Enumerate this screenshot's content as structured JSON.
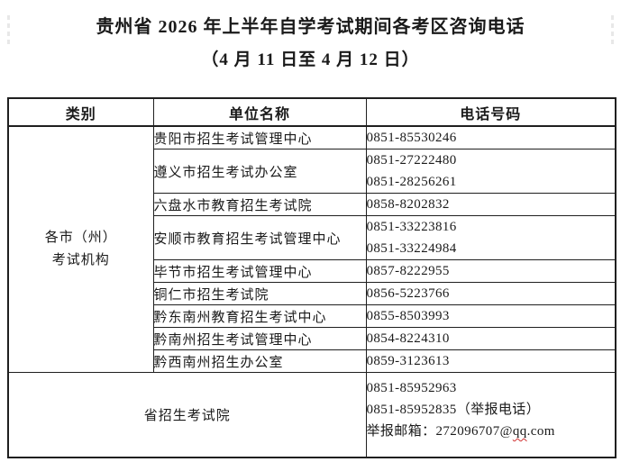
{
  "page": {
    "title": "贵州省 2026 年上半年自学考试期间各考区咨询电话",
    "subtitle": "（4 月 11 日至 4 月 12 日）"
  },
  "table": {
    "headers": [
      "类别",
      "单位名称",
      "电话号码"
    ],
    "category_group": {
      "line1": "各市（州）",
      "line2": "考试机构"
    },
    "rows": [
      {
        "unit": "贵阳市招生考试管理中心",
        "phones": [
          "0851-85530246"
        ]
      },
      {
        "unit": "遵义市招生考试办公室",
        "phones": [
          "0851-27222480",
          "0851-28256261"
        ]
      },
      {
        "unit": "六盘水市教育招生考试院",
        "phones": [
          "0858-8202832"
        ]
      },
      {
        "unit": "安顺市教育招生考试管理中心",
        "phones": [
          "0851-33223816",
          "0851-33224984"
        ]
      },
      {
        "unit": "毕节市招生考试管理中心",
        "phones": [
          "0857-8222955"
        ]
      },
      {
        "unit": "铜仁市招生考试院",
        "phones": [
          "0856-5223766"
        ]
      },
      {
        "unit": "黔东南州教育招生考试中心",
        "phones": [
          "0855-8503993"
        ]
      },
      {
        "unit": "黔南州招生考试管理中心",
        "phones": [
          "0854-8224310"
        ]
      },
      {
        "unit": "黔西南州招生办公室",
        "phones": [
          "0859-3123613"
        ]
      }
    ],
    "province_row": {
      "unit": "省招生考试院",
      "phone1": "0851-85952963",
      "phone2": "0851-85952835（举报电话）",
      "email_prefix": "举报邮箱：272096707@",
      "email_misspelled": "qq",
      "email_suffix": ".com"
    }
  },
  "colors": {
    "border": "#1f1f1f",
    "text": "#1a1a1a",
    "spellcheck_underline": "#d03030"
  }
}
